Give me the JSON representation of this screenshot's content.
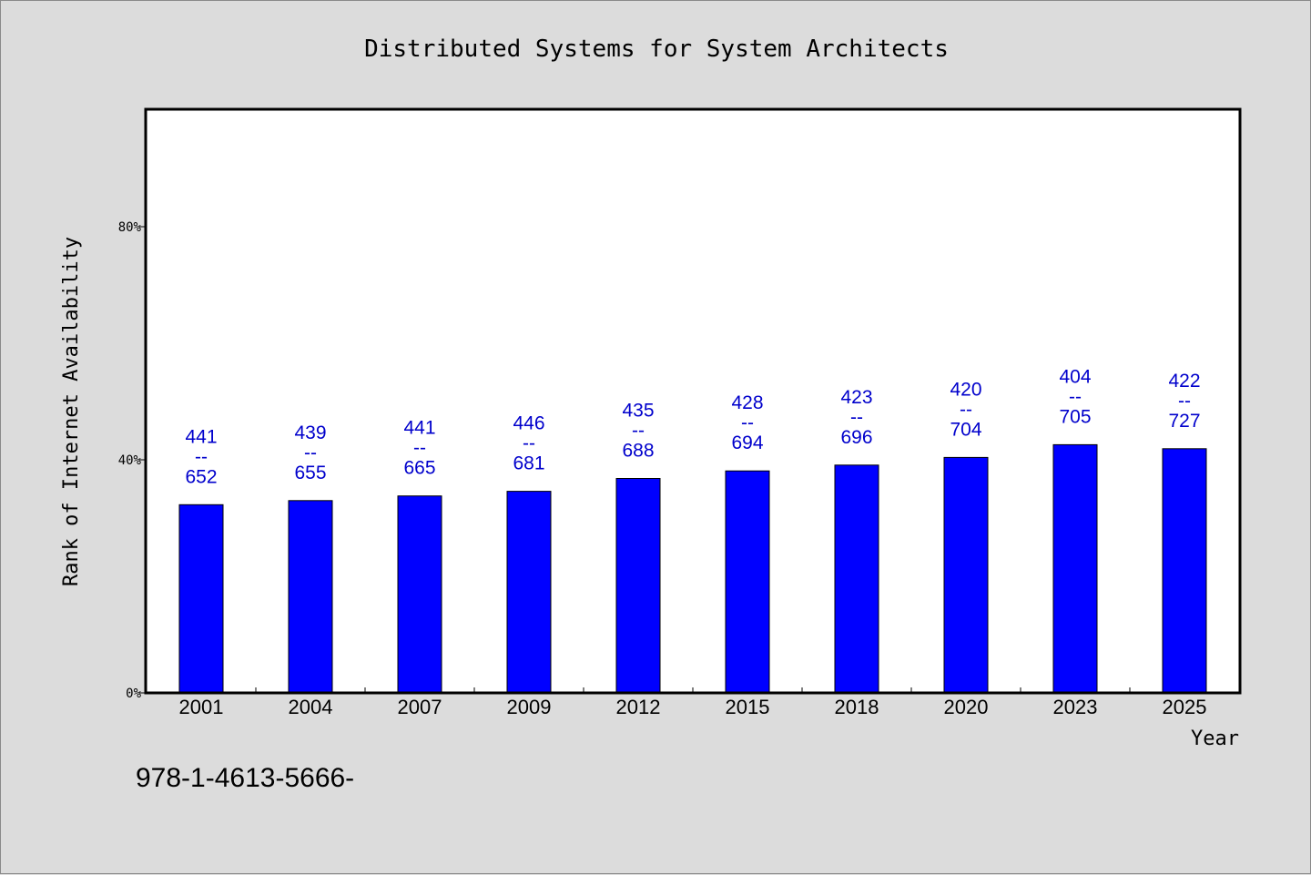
{
  "chart_data": {
    "type": "bar",
    "title": "Distributed Systems for System Architects",
    "xlabel": "Year",
    "ylabel": "Rank of Internet Availability",
    "categories": [
      "2001",
      "2004",
      "2007",
      "2009",
      "2012",
      "2015",
      "2018",
      "2020",
      "2023",
      "2025"
    ],
    "series": [
      {
        "values": [
          32.3,
          33.0,
          33.8,
          34.6,
          36.8,
          38.1,
          39.1,
          40.4,
          42.6,
          41.9
        ],
        "data_labels": [
          [
            "441",
            "--",
            "652"
          ],
          [
            "439",
            "--",
            "655"
          ],
          [
            "441",
            "--",
            "665"
          ],
          [
            "446",
            "--",
            "681"
          ],
          [
            "435",
            "--",
            "688"
          ],
          [
            "428",
            "--",
            "694"
          ],
          [
            "423",
            "--",
            "696"
          ],
          [
            "420",
            "--",
            "704"
          ],
          [
            "404",
            "--",
            "705"
          ],
          [
            "422",
            "--",
            "727"
          ]
        ]
      }
    ],
    "yticks": [
      0,
      40,
      80
    ],
    "ytick_labels": [
      "0%",
      "40%",
      "80%"
    ],
    "ylim": [
      0,
      100
    ],
    "grid": false,
    "legend": "none",
    "colors": {
      "bar": "#0000ff",
      "label": "#0000cc",
      "background": "#dcdcdc",
      "plot_background": "#ffffff"
    }
  },
  "footer": {
    "text": "978-1-4613-5666-"
  }
}
